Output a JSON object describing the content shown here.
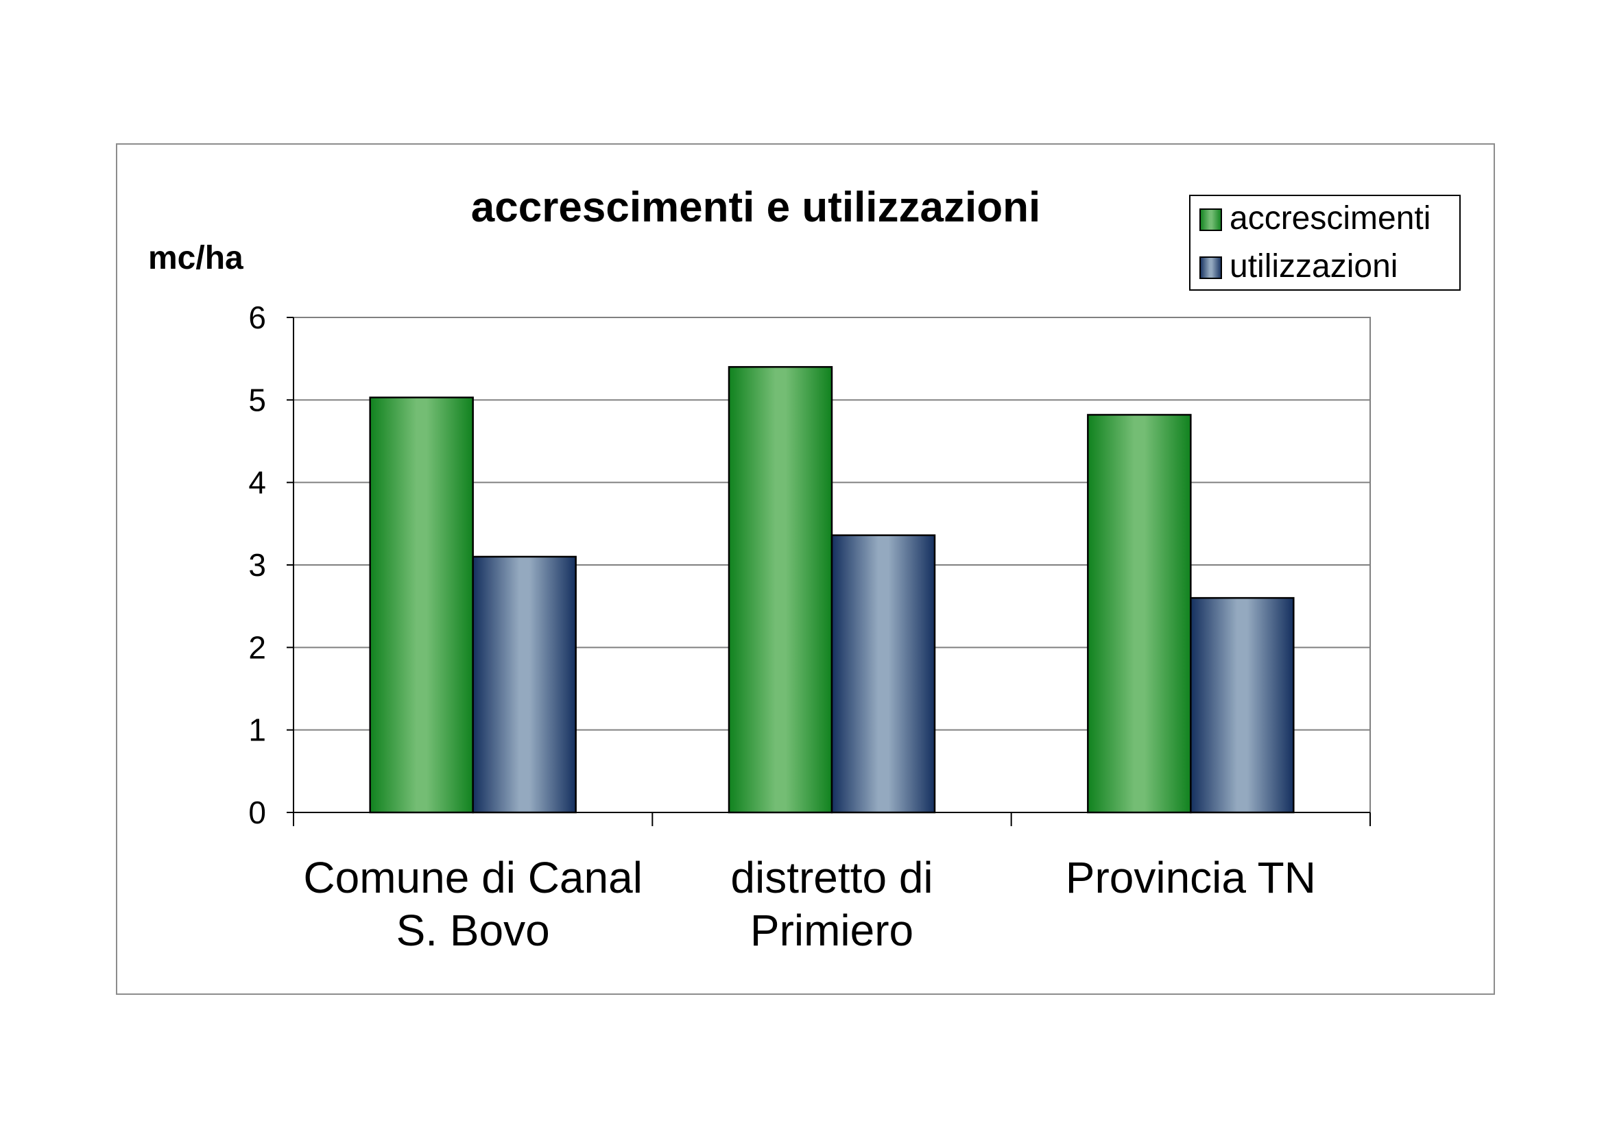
{
  "chart_data": {
    "type": "bar",
    "title": "accrescimenti e utilizzazioni",
    "ylabel": "mc/ha",
    "xlabel": "",
    "ylim": [
      0,
      6
    ],
    "yticks": [
      0,
      1,
      2,
      3,
      4,
      5,
      6
    ],
    "grid": true,
    "legend_position": "top-right",
    "categories": [
      [
        "Comune di Canal",
        "S. Bovo"
      ],
      [
        "distretto di",
        "Primiero"
      ],
      [
        "Provincia TN"
      ]
    ],
    "series": [
      {
        "name": "accrescimenti",
        "values": [
          5.03,
          5.4,
          4.82
        ],
        "color_dark": "#11821f",
        "color_light": "#74bd74"
      },
      {
        "name": "utilizzazioni",
        "values": [
          3.1,
          3.36,
          2.6
        ],
        "color_dark": "#15305f",
        "color_light": "#94a9bf"
      }
    ]
  }
}
